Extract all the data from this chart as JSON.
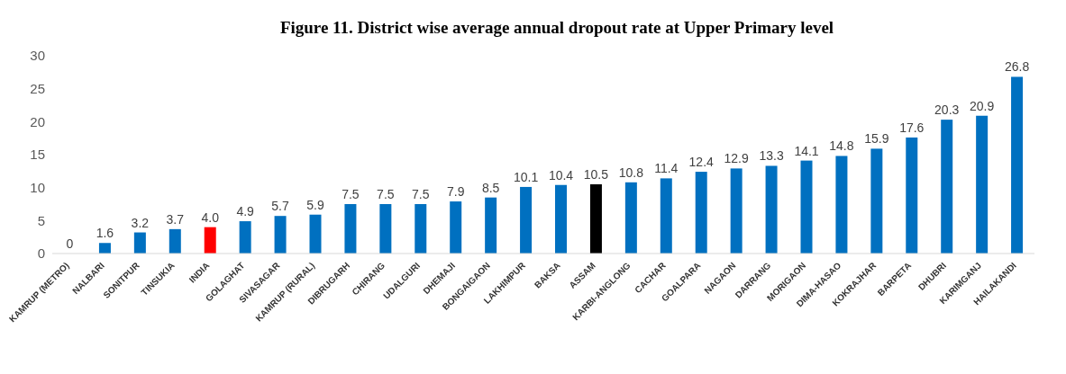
{
  "chart_data": {
    "type": "bar",
    "title": "Figure 11. District wise average annual dropout rate at Upper Primary level",
    "categories": [
      "KAMRUP (METRO)",
      "NALBARI",
      "SONITPUR",
      "TINSUKIA",
      "INDIA",
      "GOLAGHAT",
      "SIVASAGAR",
      "KAMRUP (RURAL)",
      "DIBRUGARH",
      "CHIRANG",
      "UDALGURI",
      "DHEMAJI",
      "BONGAIGAON",
      "LAKHIMPUR",
      "BAKSA",
      "ASSAM",
      "KARBI-ANGLONG",
      "CACHAR",
      "GOALPARA",
      "NAGAON",
      "DARRANG",
      "MORIGAON",
      "DIMA-HASAO",
      "KOKRAJHAR",
      "BARPETA",
      "DHUBRI",
      "KARIMGANJ",
      "HAILAKANDI"
    ],
    "values": [
      0,
      1.6,
      3.2,
      3.7,
      4.0,
      4.9,
      5.7,
      5.9,
      7.5,
      7.5,
      7.5,
      7.9,
      8.5,
      10.1,
      10.4,
      10.5,
      10.8,
      11.4,
      12.4,
      12.9,
      13.3,
      14.1,
      14.8,
      15.9,
      17.6,
      20.3,
      20.9,
      26.8
    ],
    "value_labels": [
      "0",
      "1.6",
      "3.2",
      "3.7",
      "4.0",
      "4.9",
      "5.7",
      "5.9",
      "7.5",
      "7.5",
      "7.5",
      "7.9",
      "8.5",
      "10.1",
      "10.4",
      "10.5",
      "10.8",
      "11.4",
      "12.4",
      "12.9",
      "13.3",
      "14.1",
      "14.8",
      "15.9",
      "17.6",
      "20.3",
      "20.9",
      "26.8"
    ],
    "colors": [
      "#0070c0",
      "#0070c0",
      "#0070c0",
      "#0070c0",
      "#ff0000",
      "#0070c0",
      "#0070c0",
      "#0070c0",
      "#0070c0",
      "#0070c0",
      "#0070c0",
      "#0070c0",
      "#0070c0",
      "#0070c0",
      "#0070c0",
      "#000000",
      "#0070c0",
      "#0070c0",
      "#0070c0",
      "#0070c0",
      "#0070c0",
      "#0070c0",
      "#0070c0",
      "#0070c0",
      "#0070c0",
      "#0070c0",
      "#0070c0",
      "#0070c0"
    ],
    "ylim": [
      0,
      30
    ],
    "yticks": [
      0,
      5,
      10,
      15,
      20,
      25,
      30
    ],
    "grid": false,
    "legend": false
  }
}
